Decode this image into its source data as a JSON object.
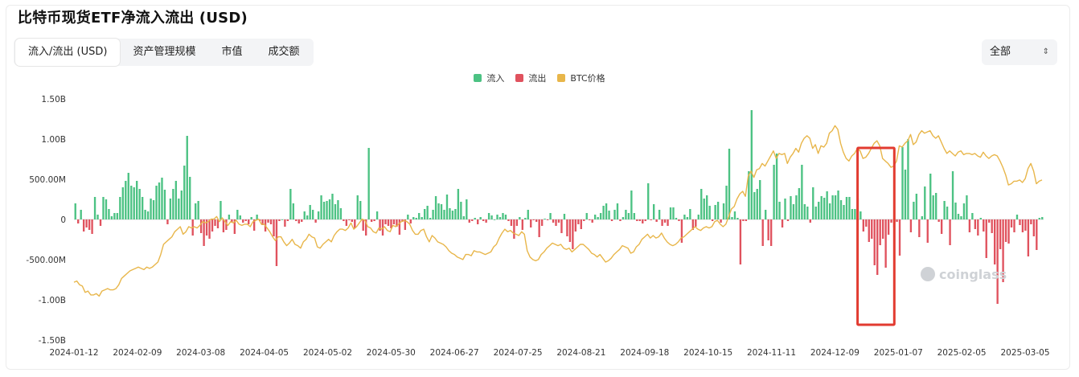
{
  "title": "比特币现货ETF净流入流出 (USD)",
  "tabs": [
    {
      "label": "流入/流出 (USD)",
      "active": true
    },
    {
      "label": "资产管理规模",
      "active": false
    },
    {
      "label": "市值",
      "active": false
    },
    {
      "label": "成交额",
      "active": false
    }
  ],
  "range_select": {
    "value": "全部",
    "icon": "updown-chevron-icon"
  },
  "watermark": "coinglass",
  "colors": {
    "inflow": "#4cc283",
    "outflow": "#e0525e",
    "btc": "#e8b64a",
    "highlight": "#e23b30"
  },
  "chart_data": {
    "type": "bar",
    "legend": [
      {
        "name": "流入",
        "color": "#4cc283"
      },
      {
        "name": "流出",
        "color": "#e0525e"
      },
      {
        "name": "BTC价格",
        "color": "#e8b64a"
      }
    ],
    "legend_position": "top-center",
    "y_ticks": [
      "1.50B",
      "1.00B",
      "500.00M",
      "0",
      "-500.00M",
      "-1.00B",
      "-1.50B"
    ],
    "ylim": [
      -1500000000,
      1500000000
    ],
    "x_ticks": [
      "2024-01-12",
      "2024-02-09",
      "2024-03-08",
      "2024-04-05",
      "2024-05-02",
      "2024-05-30",
      "2024-06-27",
      "2024-07-25",
      "2024-08-21",
      "2024-09-18",
      "2024-10-15",
      "2024-11-11",
      "2024-12-09",
      "2025-01-07",
      "2025-02-05",
      "2025-03-05"
    ],
    "grid": false,
    "highlight_region": {
      "from_index": 281,
      "to_index": 292
    },
    "series": [
      {
        "name": "流入/流出",
        "values_musd": [
          200,
          -50,
          120,
          -150,
          -100,
          -130,
          -180,
          280,
          60,
          -80,
          280,
          250,
          130,
          40,
          80,
          80,
          280,
          400,
          480,
          580,
          420,
          400,
          480,
          380,
          280,
          120,
          100,
          260,
          240,
          420,
          460,
          520,
          370,
          -60,
          260,
          380,
          480,
          260,
          360,
          670,
          1040,
          530,
          -200,
          200,
          230,
          -170,
          -330,
          -200,
          -240,
          -150,
          -80,
          -110,
          230,
          -160,
          -130,
          60,
          -40,
          -180,
          120,
          50,
          -40,
          -20,
          -60,
          30,
          -140,
          60,
          -20,
          -70,
          -150,
          -40,
          -60,
          -210,
          -580,
          -20,
          0,
          -90,
          -20,
          380,
          200,
          -20,
          -50,
          -30,
          100,
          50,
          180,
          120,
          -40,
          100,
          300,
          220,
          230,
          250,
          320,
          190,
          240,
          140,
          -20,
          -80,
          -10,
          -30,
          -110,
          300,
          230,
          -140,
          -200,
          890,
          -30,
          -20,
          100,
          -140,
          -200,
          -60,
          -80,
          -110,
          -60,
          -90,
          -190,
          -30,
          -130,
          60,
          -50,
          30,
          20,
          80,
          30,
          130,
          170,
          20,
          120,
          290,
          200,
          190,
          120,
          310,
          140,
          110,
          130,
          380,
          220,
          40,
          250,
          -40,
          -20,
          20,
          -60,
          30,
          -20,
          -40,
          80,
          50,
          0,
          60,
          30,
          80,
          60,
          -20,
          -80,
          -240,
          -80,
          30,
          -130,
          20,
          120,
          -100,
          -10,
          -30,
          -220,
          -80,
          10,
          -10,
          80,
          -40,
          -80,
          -40,
          -170,
          70,
          -210,
          -280,
          -370,
          -150,
          -60,
          -120,
          -20,
          80,
          -10,
          -40,
          60,
          30,
          80,
          170,
          200,
          110,
          -20,
          120,
          200,
          -20,
          30,
          120,
          80,
          360,
          80,
          -20,
          -20,
          -50,
          -20,
          450,
          -10,
          190,
          -30,
          120,
          -80,
          -40,
          -80,
          150,
          150,
          20,
          -20,
          -290,
          60,
          30,
          130,
          -130,
          -90,
          60,
          380,
          260,
          300,
          170,
          -20,
          180,
          220,
          -40,
          200,
          420,
          880,
          30,
          100,
          20,
          -560,
          -20,
          -20,
          600,
          1360,
          340,
          380,
          490,
          -330,
          120,
          -260,
          -330,
          680,
          820,
          220,
          -100,
          260,
          -20,
          290,
          190,
          300,
          390,
          680,
          190,
          160,
          -40,
          400,
          160,
          220,
          290,
          270,
          350,
          200,
          300,
          300,
          360,
          240,
          180,
          280,
          280,
          130,
          130,
          260,
          100,
          -150,
          -90,
          -280,
          -240,
          -570,
          -690,
          -320,
          -240,
          -600,
          -190,
          -40,
          -100,
          -30,
          -450,
          900,
          620,
          1000,
          -160,
          220,
          320,
          -220,
          40,
          410,
          -290,
          570,
          300,
          330,
          -30,
          -180,
          230,
          160,
          -320,
          600,
          210,
          70,
          40,
          200,
          300,
          -160,
          80,
          -120,
          -200,
          20,
          -150,
          -480,
          -40,
          -170,
          -560,
          -1050,
          -370,
          -780,
          -280,
          -300,
          -100,
          -160,
          60,
          -70,
          -160,
          -140,
          -460,
          -60,
          -210,
          -380,
          20,
          30
        ]
      },
      {
        "name": "BTC价格",
        "values_usd": [
          46000,
          46500,
          45000,
          44500,
          42000,
          42500,
          41000,
          41000,
          41500,
          40500,
          42500,
          43000,
          43500,
          43000,
          43000,
          43500,
          45000,
          47500,
          48500,
          49500,
          50500,
          51000,
          51500,
          52000,
          51500,
          51000,
          52000,
          51500,
          52000,
          53000,
          54000,
          57000,
          61000,
          62000,
          63000,
          64000,
          66000,
          67000,
          68000,
          65000,
          66000,
          68000,
          67500,
          68000,
          67500,
          68500,
          70000,
          69500,
          70000,
          71000,
          71000,
          72000,
          70000,
          71500,
          70000,
          68500,
          70000,
          69500,
          70500,
          69000,
          68500,
          69000,
          69000,
          68000,
          70000,
          70500,
          71000,
          69000,
          69000,
          67500,
          66000,
          64000,
          62500,
          64000,
          64000,
          62000,
          60500,
          61500,
          63000,
          61000,
          60500,
          59500,
          62000,
          63000,
          65000,
          64000,
          63500,
          60000,
          59500,
          61000,
          62000,
          63000,
          62000,
          64500,
          66000,
          67000,
          67000,
          66500,
          67500,
          69500,
          67000,
          68000,
          69500,
          71000,
          70500,
          68000,
          67500,
          66000,
          65500,
          67500,
          67000,
          68000,
          66500,
          66000,
          68500,
          68000,
          69000,
          70000,
          70500,
          70000,
          69000,
          66500,
          65000,
          65000,
          66500,
          67000,
          64000,
          62000,
          64500,
          63500,
          62000,
          61500,
          61000,
          60000,
          58500,
          57500,
          57000,
          56000,
          55500,
          55000,
          57000,
          57000,
          56500,
          58500,
          58000,
          58000,
          57500,
          57000,
          57500,
          58000,
          60000,
          61000,
          63500,
          65500,
          67000,
          66000,
          66500,
          65500,
          65000,
          64500,
          66000,
          65000,
          58500,
          56000,
          55000,
          54500,
          55000,
          57000,
          58000,
          59500,
          60500,
          61500,
          61000,
          60500,
          61000,
          59500,
          59000,
          59500,
          58000,
          59000,
          60000,
          61000,
          61000,
          60000,
          59000,
          57500,
          57000,
          56000,
          57000,
          55500,
          54000,
          54500,
          55500,
          57000,
          58000,
          59000,
          60500,
          60000,
          59500,
          57500,
          58000,
          60000,
          61000,
          63000,
          64000,
          65000,
          63500,
          64500,
          63500,
          64000,
          65500,
          63500,
          62000,
          61000,
          60500,
          61000,
          62000,
          63500,
          64000,
          65000,
          66000,
          67000,
          68000,
          67000,
          66500,
          67500,
          68000,
          67500,
          68000,
          70000,
          70500,
          69000,
          68000,
          69000,
          72000,
          75000,
          76000,
          79000,
          81000,
          82000,
          80000,
          88000,
          90000,
          87500,
          90500,
          91000,
          93000,
          92000,
          94000,
          96000,
          98000,
          95000,
          97000,
          96500,
          97000,
          93000,
          95500,
          97000,
          99000,
          97500,
          101000,
          103000,
          104000,
          103000,
          99000,
          100500,
          97000,
          100000,
          99500,
          101000,
          105000,
          106000,
          108000,
          106500,
          101000,
          97500,
          95000,
          94000,
          96000,
          97000,
          99000,
          98000,
          95000,
          95500,
          97000,
          99000,
          101000,
          102000,
          100000,
          95000,
          94000,
          93000,
          91500,
          92000,
          94000,
          100000,
          99500,
          101000,
          102000,
          104500,
          100500,
          101500,
          104500,
          106000,
          105000,
          105500,
          106000,
          104000,
          103000,
          104000,
          101500,
          99000,
          97000,
          98000,
          97000,
          96000,
          97500,
          98000,
          96500,
          97000,
          97000,
          96500,
          97000,
          96000,
          95500,
          97500,
          96000,
          95000,
          96000,
          96500,
          96000,
          94000,
          91500,
          88500,
          84500,
          85000,
          86000,
          86000,
          86500,
          85500,
          87000,
          91000,
          93000,
          90000,
          85000,
          86000,
          86500
        ],
        "note": "BTC价格 plotted on hidden secondary axis"
      }
    ]
  }
}
